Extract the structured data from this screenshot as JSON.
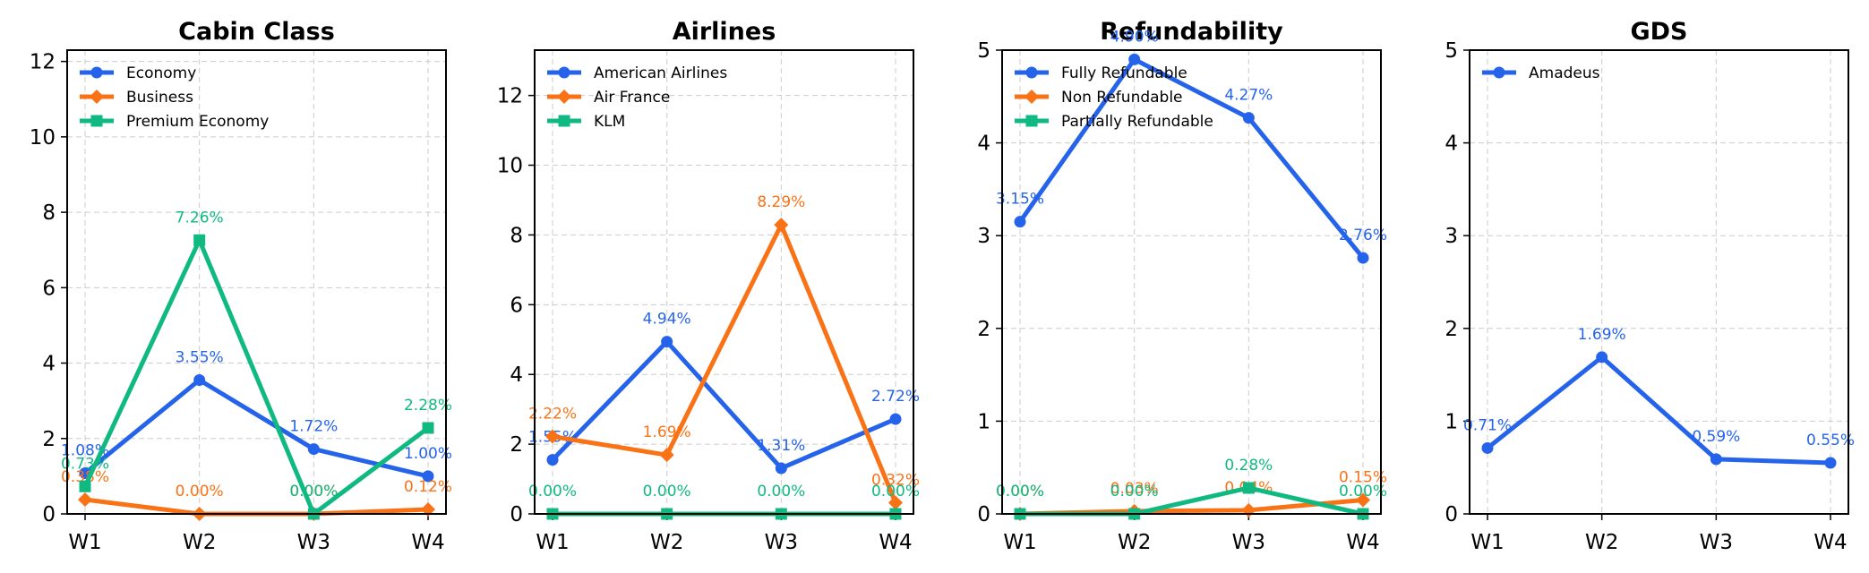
{
  "colors": {
    "Economy": "#2563eb",
    "Business": "#f97316",
    "Premium Economy": "#10b981",
    "American Airlines": "#2563eb",
    "Air France": "#f97316",
    "KLM": "#10b981",
    "Fully Refundable": "#2563eb",
    "Non Refundable": "#f97316",
    "Partially Refundable": "#10b981",
    "Amadeus": "#2563eb"
  },
  "chart_data": [
    {
      "type": "line",
      "title": "Cabin Class",
      "categories": [
        "W1",
        "W2",
        "W3",
        "W4"
      ],
      "ylim": [
        0,
        12.3
      ],
      "yticks": [
        0,
        2,
        4,
        6,
        8,
        10,
        12
      ],
      "ytick_labels": [
        "0",
        "2",
        "4",
        "6",
        "8",
        "10",
        "12"
      ],
      "grid": true,
      "legend": "top-left",
      "series": [
        {
          "name": "Economy",
          "marker": "circle",
          "values": [
            1.08,
            3.55,
            1.72,
            1.0
          ],
          "labels": [
            "1.08%",
            "3.55%",
            "1.72%",
            "1.00%"
          ]
        },
        {
          "name": "Business",
          "marker": "diamond",
          "values": [
            0.38,
            0.0,
            0.0,
            0.12
          ],
          "labels": [
            "0.38%",
            "0.00%",
            "0.00%",
            "0.12%"
          ]
        },
        {
          "name": "Premium Economy",
          "marker": "square",
          "values": [
            0.73,
            7.26,
            0.0,
            2.28
          ],
          "labels": [
            "0.73%",
            "7.26%",
            "0.00%",
            "2.28%"
          ]
        }
      ]
    },
    {
      "type": "line",
      "title": "Airlines",
      "categories": [
        "W1",
        "W2",
        "W3",
        "W4"
      ],
      "ylim": [
        0,
        13.3
      ],
      "yticks": [
        0,
        2,
        4,
        6,
        8,
        10,
        12
      ],
      "ytick_labels": [
        "0",
        "2",
        "4",
        "6",
        "8",
        "10",
        "12"
      ],
      "grid": true,
      "legend": "top-left",
      "series": [
        {
          "name": "American Airlines",
          "marker": "circle",
          "values": [
            1.55,
            4.94,
            1.31,
            2.72
          ],
          "labels": [
            "1.55%",
            "4.94%",
            "1.31%",
            "2.72%"
          ]
        },
        {
          "name": "Air France",
          "marker": "diamond",
          "values": [
            2.22,
            1.69,
            8.29,
            0.32
          ],
          "labels": [
            "2.22%",
            "1.69%",
            "8.29%",
            "0.32%"
          ]
        },
        {
          "name": "KLM",
          "marker": "square",
          "values": [
            0.0,
            0.0,
            0.0,
            0.0
          ],
          "labels": [
            "0.00%",
            "0.00%",
            "0.00%",
            "0.00%"
          ]
        }
      ]
    },
    {
      "type": "line",
      "title": "Refundability",
      "categories": [
        "W1",
        "W2",
        "W3",
        "W4"
      ],
      "ylim": [
        0,
        5
      ],
      "yticks": [
        0,
        1,
        2,
        3,
        4,
        5
      ],
      "ytick_labels": [
        "0",
        "1",
        "2",
        "3",
        "4",
        "5"
      ],
      "grid": true,
      "legend": "top-left",
      "series": [
        {
          "name": "Fully Refundable",
          "marker": "circle",
          "values": [
            3.15,
            4.9,
            4.27,
            2.76
          ],
          "labels": [
            "3.15%",
            "4.90%",
            "4.27%",
            "2.76%"
          ]
        },
        {
          "name": "Non Refundable",
          "marker": "diamond",
          "values": [
            0.0,
            0.03,
            0.04,
            0.15
          ],
          "labels": [
            "0.00%",
            "0.03%",
            "0.04%",
            "0.15%"
          ]
        },
        {
          "name": "Partially Refundable",
          "marker": "square",
          "values": [
            0.0,
            0.0,
            0.28,
            0.0
          ],
          "labels": [
            "0.00%",
            "0.00%",
            "0.28%",
            "0.00%"
          ]
        }
      ]
    },
    {
      "type": "line",
      "title": "GDS",
      "categories": [
        "W1",
        "W2",
        "W3",
        "W4"
      ],
      "ylim": [
        0,
        5
      ],
      "yticks": [
        0,
        1,
        2,
        3,
        4,
        5
      ],
      "ytick_labels": [
        "0",
        "1",
        "2",
        "3",
        "4",
        "5"
      ],
      "grid": true,
      "legend": "top-left",
      "series": [
        {
          "name": "Amadeus",
          "marker": "circle",
          "values": [
            0.71,
            1.69,
            0.59,
            0.55
          ],
          "labels": [
            "0.71%",
            "1.69%",
            "0.59%",
            "0.55%"
          ]
        }
      ]
    }
  ]
}
